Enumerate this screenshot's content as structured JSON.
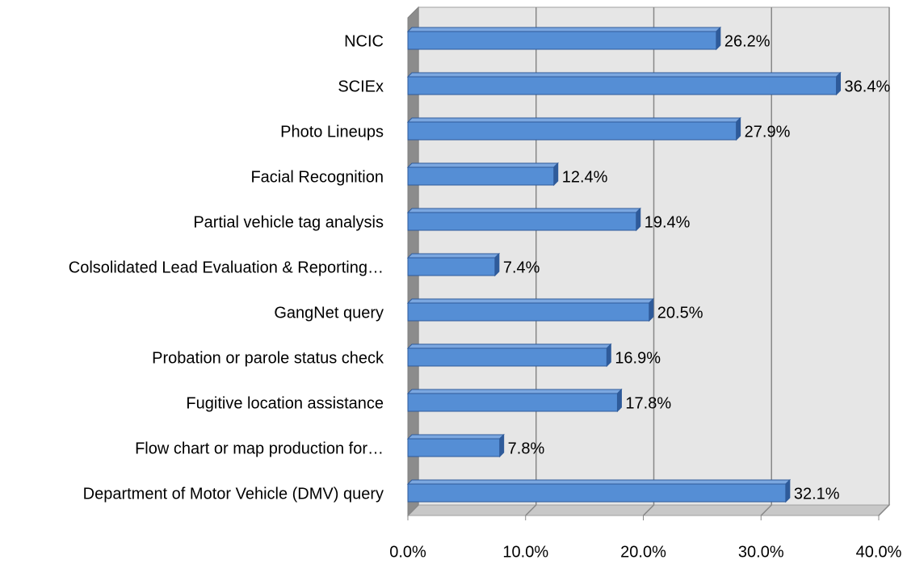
{
  "chart_data": {
    "type": "bar",
    "orientation": "horizontal",
    "categories": [
      "NCIC",
      "SCIEx",
      "Photo Lineups",
      "Facial Recognition",
      "Partial vehicle tag analysis",
      "Colsolidated Lead Evaluation & Reporting…",
      "GangNet query",
      "Probation or parole status check",
      "Fugitive location assistance",
      "Flow chart or map production for…",
      "Department of Motor Vehicle (DMV) query"
    ],
    "values": [
      26.2,
      36.4,
      27.9,
      12.4,
      19.4,
      7.4,
      20.5,
      16.9,
      17.8,
      7.8,
      32.1
    ],
    "value_labels": [
      "26.2%",
      "36.4%",
      "27.9%",
      "12.4%",
      "19.4%",
      "7.4%",
      "20.5%",
      "16.9%",
      "17.8%",
      "7.8%",
      "32.1%"
    ],
    "color": "#558ed5",
    "xlim": [
      0,
      40
    ],
    "xticks": [
      {
        "value": 0,
        "label": "0.0%"
      },
      {
        "value": 10,
        "label": "10.0%"
      },
      {
        "value": 20,
        "label": "20.0%"
      },
      {
        "value": 30,
        "label": "30.0%"
      },
      {
        "value": 40,
        "label": "40.0%"
      }
    ],
    "grid": true
  }
}
